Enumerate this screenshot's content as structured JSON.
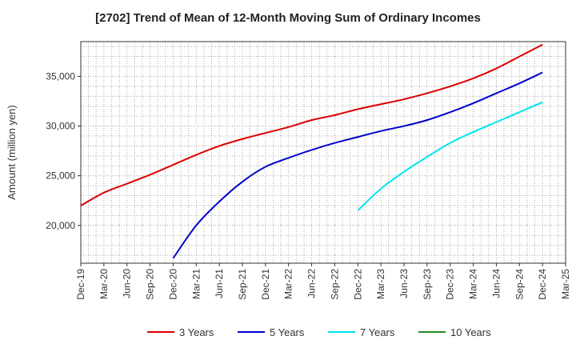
{
  "chart_data": {
    "type": "line",
    "title": "[2702]  Trend of Mean of 12-Month Moving Sum of Ordinary Incomes",
    "ylabel": "Amount (million yen)",
    "xlabel": "",
    "ylim": [
      16200,
      38500
    ],
    "x_ticks": [
      "Dec-19",
      "Mar-20",
      "Jun-20",
      "Sep-20",
      "Dec-20",
      "Mar-21",
      "Jun-21",
      "Sep-21",
      "Dec-21",
      "Mar-22",
      "Jun-22",
      "Sep-22",
      "Dec-22",
      "Mar-23",
      "Jun-23",
      "Sep-23",
      "Dec-23",
      "Mar-24",
      "Jun-24",
      "Sep-24",
      "Dec-24",
      "Mar-25"
    ],
    "y_ticks": [
      20000,
      25000,
      30000,
      35000
    ],
    "y_tick_labels": [
      "20,000",
      "25,000",
      "30,000",
      "35,000"
    ],
    "grid": true,
    "legend_position": "bottom",
    "series": [
      {
        "name": "3 Years",
        "color": "#dd0000",
        "x": [
          "Dec-19",
          "Mar-20",
          "Jun-20",
          "Sep-20",
          "Dec-20",
          "Mar-21",
          "Jun-21",
          "Sep-21",
          "Dec-21",
          "Mar-22",
          "Jun-22",
          "Sep-22",
          "Dec-22",
          "Mar-23",
          "Jun-23",
          "Sep-23",
          "Dec-23",
          "Mar-24",
          "Jun-24",
          "Sep-24",
          "Dec-24"
        ],
        "values": [
          22000,
          23300,
          24200,
          25100,
          26100,
          27100,
          28000,
          28700,
          29300,
          29900,
          30600,
          31100,
          31700,
          32200,
          32700,
          33300,
          34000,
          34800,
          35800,
          37000,
          38200
        ]
      },
      {
        "name": "5 Years",
        "color": "#0000cc",
        "x": [
          "Dec-20",
          "Mar-21",
          "Jun-21",
          "Sep-21",
          "Dec-21",
          "Mar-22",
          "Jun-22",
          "Sep-22",
          "Dec-22",
          "Mar-23",
          "Jun-23",
          "Sep-23",
          "Dec-23",
          "Mar-24",
          "Jun-24",
          "Sep-24",
          "Dec-24"
        ],
        "values": [
          16700,
          20000,
          22400,
          24400,
          25900,
          26800,
          27600,
          28300,
          28900,
          29500,
          30000,
          30600,
          31400,
          32300,
          33300,
          34300,
          35400
        ]
      },
      {
        "name": "7 Years",
        "color": "#00e5ee",
        "x": [
          "Dec-22",
          "Mar-23",
          "Jun-23",
          "Sep-23",
          "Dec-23",
          "Mar-24",
          "Jun-24",
          "Sep-24",
          "Dec-24"
        ],
        "values": [
          21500,
          23700,
          25400,
          26900,
          28300,
          29400,
          30400,
          31400,
          32400
        ]
      },
      {
        "name": "10 Years",
        "color": "#228b22",
        "x": [],
        "values": []
      }
    ]
  }
}
